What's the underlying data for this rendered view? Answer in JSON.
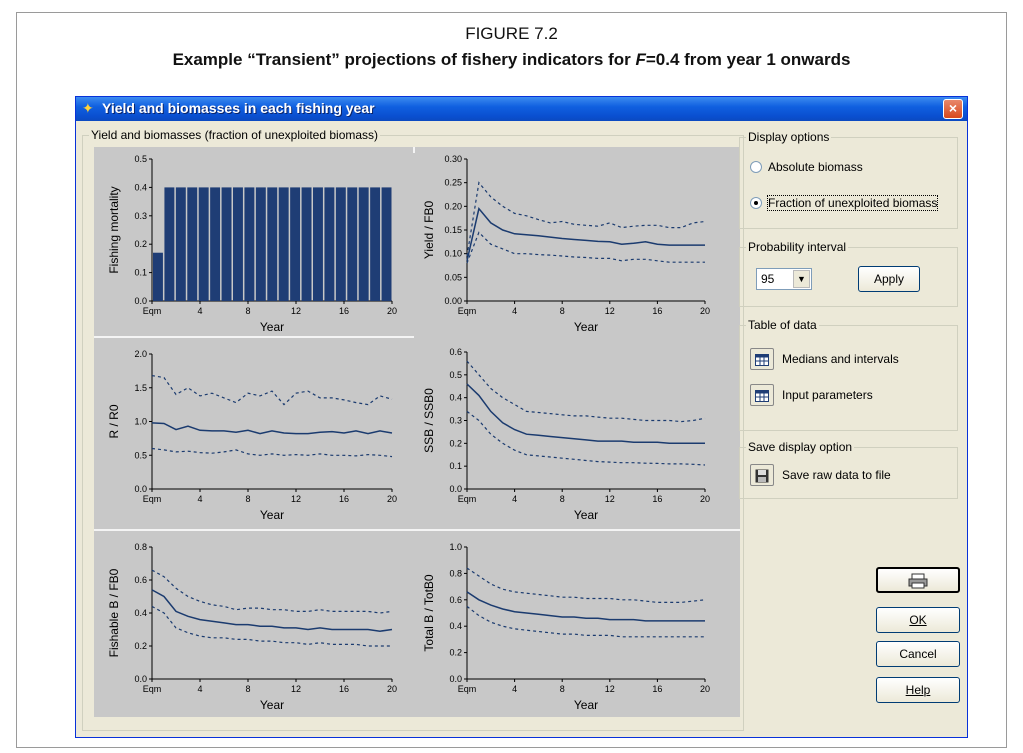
{
  "figure": {
    "number": "FIGURE 7.2",
    "title_prefix": "Example “Transient” projections of fishery indicators for ",
    "title_var": "F",
    "title_suffix": "=0.4 from year 1 onwards"
  },
  "window": {
    "title": "Yield and biomasses in each fishing year",
    "title_icon": "fish-icon",
    "close_icon": "close-icon"
  },
  "plot_group": {
    "label": "Yield and biomasses (fraction of unexploited biomass)"
  },
  "display_options": {
    "label": "Display options",
    "absolute": {
      "label": "Absolute biomass",
      "selected": false
    },
    "fraction": {
      "label": "Fraction of unexploited biomass",
      "selected": true
    }
  },
  "probability": {
    "label": "Probability interval",
    "value": "95",
    "apply_label": "Apply"
  },
  "table_of_data": {
    "label": "Table of data",
    "medians_label": "Medians and intervals",
    "inputs_label": "Input parameters",
    "icon": "table-icon"
  },
  "save_display": {
    "label": "Save display option",
    "save_label": "Save raw data to file",
    "icon": "floppy-disk-icon"
  },
  "buttons": {
    "print_icon": "printer-icon",
    "ok": "OK",
    "cancel": "Cancel",
    "help": "Help"
  },
  "colors": {
    "series": "#1b3b6f",
    "bar": "#1f3d75",
    "plot_bg": "#c8c8c8"
  },
  "chart_data": [
    {
      "type": "bar",
      "ylabel": "Fishing mortality",
      "xlabel": "Year",
      "ylim": [
        0,
        0.5
      ],
      "yticks": [
        "0.0",
        "0.1",
        "0.2",
        "0.3",
        "0.4",
        "0.5"
      ],
      "xticks": [
        "Eqm",
        "4",
        "8",
        "12",
        "16",
        "20"
      ],
      "categories": [
        "Eqm",
        "1",
        "2",
        "3",
        "4",
        "5",
        "6",
        "7",
        "8",
        "9",
        "10",
        "11",
        "12",
        "13",
        "14",
        "15",
        "16",
        "17",
        "18",
        "19",
        "20"
      ],
      "values": [
        0.17,
        0.4,
        0.4,
        0.4,
        0.4,
        0.4,
        0.4,
        0.4,
        0.4,
        0.4,
        0.4,
        0.4,
        0.4,
        0.4,
        0.4,
        0.4,
        0.4,
        0.4,
        0.4,
        0.4,
        0.4
      ]
    },
    {
      "type": "line",
      "ylabel": "Yield / FB0",
      "xlabel": "Year",
      "ylim": [
        0,
        0.3
      ],
      "yticks": [
        "0.00",
        "0.05",
        "0.10",
        "0.15",
        "0.20",
        "0.25",
        "0.30"
      ],
      "xticks": [
        "Eqm",
        "4",
        "8",
        "12",
        "16",
        "20"
      ],
      "x": [
        0,
        1,
        2,
        3,
        4,
        5,
        6,
        7,
        8,
        9,
        10,
        11,
        12,
        13,
        14,
        15,
        16,
        17,
        18,
        19,
        20
      ],
      "median": [
        0.085,
        0.195,
        0.165,
        0.15,
        0.142,
        0.14,
        0.138,
        0.135,
        0.132,
        0.13,
        0.128,
        0.126,
        0.125,
        0.12,
        0.122,
        0.125,
        0.12,
        0.118,
        0.118,
        0.118,
        0.118
      ],
      "upper": [
        0.095,
        0.25,
        0.22,
        0.2,
        0.185,
        0.18,
        0.172,
        0.165,
        0.168,
        0.162,
        0.16,
        0.158,
        0.165,
        0.155,
        0.158,
        0.16,
        0.16,
        0.155,
        0.155,
        0.165,
        0.168
      ],
      "lower": [
        0.08,
        0.145,
        0.12,
        0.11,
        0.1,
        0.1,
        0.098,
        0.097,
        0.095,
        0.093,
        0.092,
        0.09,
        0.09,
        0.085,
        0.088,
        0.088,
        0.085,
        0.082,
        0.082,
        0.082,
        0.082
      ]
    },
    {
      "type": "line",
      "ylabel": "R / R0",
      "xlabel": "Year",
      "ylim": [
        0,
        2.0
      ],
      "yticks": [
        "0.0",
        "0.5",
        "1.0",
        "1.5",
        "2.0"
      ],
      "xticks": [
        "Eqm",
        "4",
        "8",
        "12",
        "16",
        "20"
      ],
      "x": [
        0,
        1,
        2,
        3,
        4,
        5,
        6,
        7,
        8,
        9,
        10,
        11,
        12,
        13,
        14,
        15,
        16,
        17,
        18,
        19,
        20
      ],
      "median": [
        0.98,
        0.97,
        0.88,
        0.93,
        0.87,
        0.86,
        0.86,
        0.84,
        0.87,
        0.82,
        0.86,
        0.83,
        0.82,
        0.82,
        0.84,
        0.85,
        0.83,
        0.86,
        0.82,
        0.86,
        0.83
      ],
      "upper": [
        1.68,
        1.65,
        1.4,
        1.5,
        1.38,
        1.42,
        1.35,
        1.28,
        1.42,
        1.38,
        1.45,
        1.25,
        1.42,
        1.45,
        1.35,
        1.35,
        1.32,
        1.28,
        1.25,
        1.38,
        1.33
      ],
      "lower": [
        0.6,
        0.58,
        0.55,
        0.56,
        0.54,
        0.53,
        0.55,
        0.58,
        0.52,
        0.5,
        0.52,
        0.5,
        0.51,
        0.5,
        0.52,
        0.5,
        0.5,
        0.49,
        0.51,
        0.5,
        0.48
      ]
    },
    {
      "type": "line",
      "ylabel": "SSB / SSB0",
      "xlabel": "Year",
      "ylim": [
        0,
        0.6
      ],
      "yticks": [
        "0.0",
        "0.1",
        "0.2",
        "0.3",
        "0.4",
        "0.5",
        "0.6"
      ],
      "xticks": [
        "Eqm",
        "4",
        "8",
        "12",
        "16",
        "20"
      ],
      "x": [
        0,
        1,
        2,
        3,
        4,
        5,
        6,
        7,
        8,
        9,
        10,
        11,
        12,
        13,
        14,
        15,
        16,
        17,
        18,
        19,
        20
      ],
      "median": [
        0.46,
        0.41,
        0.34,
        0.29,
        0.26,
        0.24,
        0.235,
        0.23,
        0.225,
        0.22,
        0.215,
        0.21,
        0.21,
        0.21,
        0.205,
        0.205,
        0.205,
        0.2,
        0.2,
        0.2,
        0.2
      ],
      "upper": [
        0.56,
        0.5,
        0.44,
        0.4,
        0.37,
        0.34,
        0.335,
        0.33,
        0.325,
        0.32,
        0.32,
        0.315,
        0.31,
        0.31,
        0.305,
        0.3,
        0.3,
        0.3,
        0.295,
        0.3,
        0.31
      ],
      "lower": [
        0.34,
        0.3,
        0.24,
        0.2,
        0.17,
        0.15,
        0.145,
        0.14,
        0.135,
        0.13,
        0.125,
        0.12,
        0.118,
        0.115,
        0.115,
        0.113,
        0.112,
        0.11,
        0.11,
        0.108,
        0.105
      ]
    },
    {
      "type": "line",
      "ylabel": "Fishable B / FB0",
      "xlabel": "Year",
      "ylim": [
        0,
        0.8
      ],
      "yticks": [
        "0.0",
        "0.2",
        "0.4",
        "0.6",
        "0.8"
      ],
      "xticks": [
        "Eqm",
        "4",
        "8",
        "12",
        "16",
        "20"
      ],
      "x": [
        0,
        1,
        2,
        3,
        4,
        5,
        6,
        7,
        8,
        9,
        10,
        11,
        12,
        13,
        14,
        15,
        16,
        17,
        18,
        19,
        20
      ],
      "median": [
        0.54,
        0.5,
        0.41,
        0.38,
        0.36,
        0.35,
        0.34,
        0.33,
        0.33,
        0.32,
        0.32,
        0.31,
        0.31,
        0.3,
        0.31,
        0.3,
        0.3,
        0.3,
        0.3,
        0.29,
        0.3
      ],
      "upper": [
        0.66,
        0.62,
        0.55,
        0.5,
        0.47,
        0.45,
        0.44,
        0.42,
        0.43,
        0.43,
        0.42,
        0.42,
        0.41,
        0.41,
        0.42,
        0.41,
        0.41,
        0.41,
        0.41,
        0.4,
        0.41
      ],
      "lower": [
        0.44,
        0.4,
        0.31,
        0.28,
        0.26,
        0.25,
        0.25,
        0.24,
        0.24,
        0.23,
        0.23,
        0.22,
        0.22,
        0.21,
        0.22,
        0.21,
        0.21,
        0.21,
        0.2,
        0.2,
        0.2
      ]
    },
    {
      "type": "line",
      "ylabel": "Total B / TotB0",
      "xlabel": "Year",
      "ylim": [
        0,
        1.0
      ],
      "yticks": [
        "0.0",
        "0.2",
        "0.4",
        "0.6",
        "0.8",
        "1.0"
      ],
      "xticks": [
        "Eqm",
        "4",
        "8",
        "12",
        "16",
        "20"
      ],
      "x": [
        0,
        1,
        2,
        3,
        4,
        5,
        6,
        7,
        8,
        9,
        10,
        11,
        12,
        13,
        14,
        15,
        16,
        17,
        18,
        19,
        20
      ],
      "median": [
        0.66,
        0.6,
        0.56,
        0.53,
        0.51,
        0.5,
        0.49,
        0.48,
        0.47,
        0.47,
        0.46,
        0.46,
        0.45,
        0.45,
        0.45,
        0.44,
        0.44,
        0.44,
        0.44,
        0.44,
        0.44
      ],
      "upper": [
        0.84,
        0.78,
        0.72,
        0.68,
        0.66,
        0.65,
        0.64,
        0.63,
        0.62,
        0.62,
        0.61,
        0.61,
        0.61,
        0.6,
        0.6,
        0.59,
        0.58,
        0.58,
        0.58,
        0.59,
        0.6
      ],
      "lower": [
        0.55,
        0.48,
        0.43,
        0.4,
        0.38,
        0.37,
        0.36,
        0.35,
        0.34,
        0.34,
        0.33,
        0.33,
        0.33,
        0.32,
        0.32,
        0.32,
        0.32,
        0.32,
        0.32,
        0.32,
        0.32
      ]
    }
  ]
}
